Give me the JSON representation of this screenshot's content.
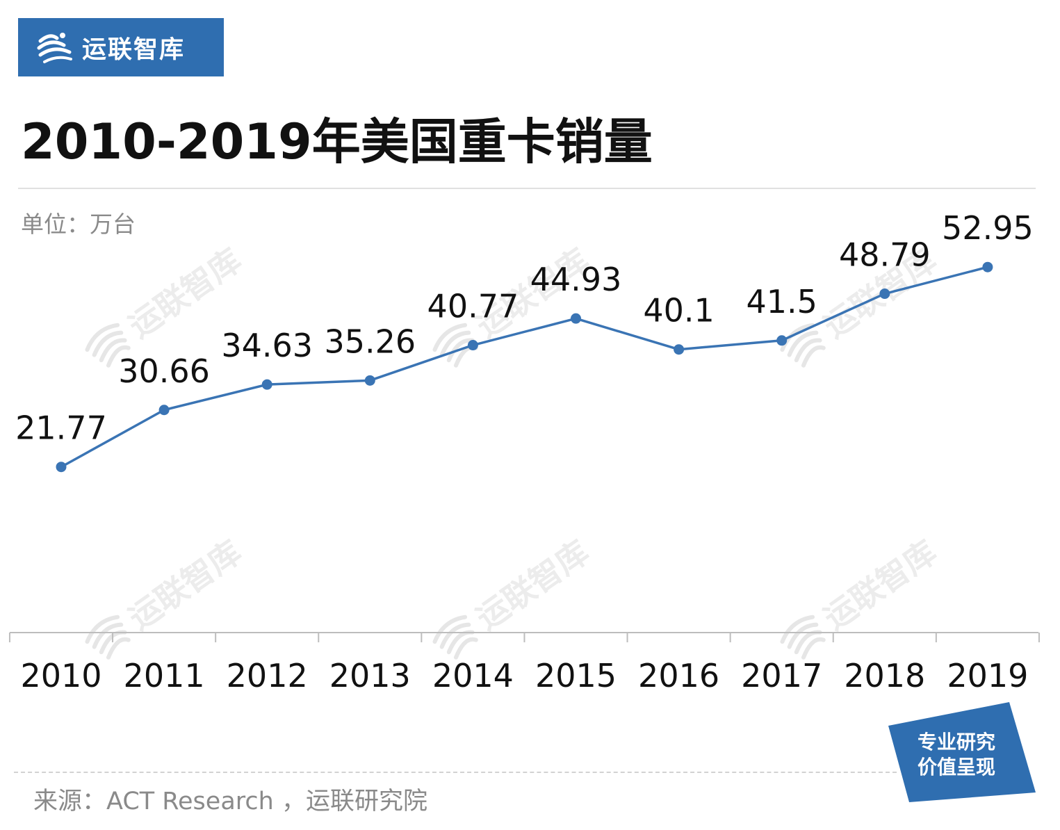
{
  "brand": {
    "name": "运联智库"
  },
  "header": {
    "title": "2010-2019年美国重卡销量"
  },
  "unit_label": "单位：万台",
  "watermark": {
    "text": "运联智库"
  },
  "stamp": {
    "line1": "专业研究",
    "line2": "价值呈现"
  },
  "footer": {
    "source": "来源：ACT Research ，运联研究院"
  },
  "colors": {
    "brand": "#2f6eb0",
    "line": "#3a74b4",
    "axis": "#bdbdbd",
    "label": "#111111"
  },
  "chart_data": {
    "type": "line",
    "categories": [
      "2010",
      "2011",
      "2012",
      "2013",
      "2014",
      "2015",
      "2016",
      "2017",
      "2018",
      "2019"
    ],
    "series": [
      {
        "values": [
          21.77,
          30.66,
          34.63,
          35.26,
          40.77,
          44.93,
          40.1,
          41.5,
          48.79,
          52.95
        ]
      }
    ],
    "data_labels": [
      "21.77",
      "30.66",
      "34.63",
      "35.26",
      "40.77",
      "44.93",
      "40.1",
      "41.5",
      "48.79",
      "52.95"
    ],
    "ylabel": "单位：万台",
    "ylim": [
      0,
      60
    ],
    "grid": false,
    "legend": "none"
  }
}
